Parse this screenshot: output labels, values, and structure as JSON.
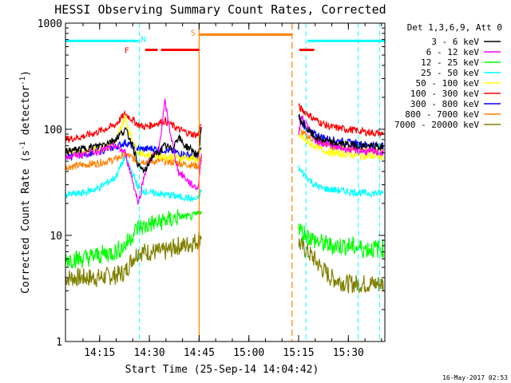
{
  "chart_data": {
    "type": "line",
    "title": "HESSI Observing Summary Count Rates, Corrected",
    "xlabel": "Start Time (25-Sep-14 14:04:42)",
    "ylabel_pre": "Corrected Count Rate (s",
    "ylabel_sup": "-1",
    "ylabel_post": " detector",
    "ylabel_sup2": "-1",
    "ylabel_end": ")",
    "footer": "16-May-2017 02:53",
    "y_scale": "log",
    "ylim": [
      1,
      1000
    ],
    "xlim": [
      "14:04:42",
      "15:41:00"
    ],
    "x_ticks": [
      "14:15",
      "14:30",
      "14:45",
      "15:00",
      "15:15",
      "15:30"
    ],
    "x_tick_minutes": [
      10.3,
      25.3,
      40.3,
      55.3,
      70.3,
      85.3
    ],
    "x_range_minutes": [
      0,
      96.3
    ],
    "y_ticks": [
      "1",
      "10",
      "100",
      "1000"
    ],
    "legend_header": "Det 1,3,6,9, Att 0",
    "legend_placement": "right",
    "series": [
      {
        "name": "3 - 6 keV",
        "color": "#000000",
        "x": [
          0,
          5,
          10,
          15,
          18,
          20,
          22,
          24,
          26,
          28,
          30,
          32,
          34,
          36,
          38,
          40,
          41.5,
          70,
          71,
          73,
          75,
          77,
          80,
          85,
          90,
          96
        ],
        "y": [
          62,
          65,
          70,
          80,
          100,
          75,
          45,
          40,
          55,
          60,
          70,
          65,
          85,
          70,
          65,
          55,
          150,
          140,
          120,
          100,
          85,
          80,
          75,
          72,
          70,
          68
        ]
      },
      {
        "name": "6 - 12 keV",
        "color": "#ff00ff",
        "x": [
          0,
          5,
          10,
          15,
          18,
          20,
          22,
          24,
          26,
          28,
          30,
          32,
          34,
          36,
          38,
          40,
          41.5,
          70,
          71,
          73,
          75,
          77,
          80,
          85,
          90,
          96
        ],
        "y": [
          55,
          58,
          62,
          70,
          60,
          35,
          20,
          40,
          55,
          60,
          180,
          80,
          40,
          35,
          30,
          28,
          80,
          80,
          130,
          110,
          80,
          75,
          70,
          65,
          62,
          60
        ]
      },
      {
        "name": "12 - 25 keV",
        "color": "#00ff00",
        "x": [
          0,
          5,
          10,
          15,
          18,
          20,
          22,
          24,
          26,
          28,
          30,
          32,
          34,
          36,
          38,
          40,
          41.5,
          70,
          71,
          73,
          75,
          77,
          80,
          85,
          90,
          96
        ],
        "y": [
          6,
          6,
          6.5,
          7,
          8,
          10,
          12,
          12,
          13,
          13,
          14,
          14,
          15,
          15,
          15,
          16,
          18,
          12,
          11,
          10,
          9,
          8.5,
          8,
          8,
          7.5,
          7.5
        ]
      },
      {
        "name": "25 - 50 keV",
        "color": "#00ffff",
        "x": [
          0,
          5,
          10,
          15,
          18,
          20,
          22,
          24,
          26,
          28,
          30,
          32,
          34,
          36,
          38,
          40,
          41.5,
          70,
          71,
          73,
          75,
          77,
          80,
          85,
          90,
          96
        ],
        "y": [
          24,
          25,
          28,
          35,
          55,
          40,
          28,
          26,
          25,
          25,
          24,
          24,
          23,
          23,
          22,
          22,
          30,
          45,
          40,
          35,
          30,
          28,
          27,
          26,
          25,
          25
        ]
      },
      {
        "name": "50 - 100 keV",
        "color": "#ffff00",
        "x": [
          0,
          5,
          10,
          15,
          18,
          20,
          22,
          24,
          26,
          28,
          30,
          32,
          34,
          36,
          38,
          40,
          41.5,
          70,
          71,
          73,
          75,
          77,
          80,
          85,
          90,
          96
        ],
        "y": [
          60,
          62,
          65,
          75,
          130,
          80,
          60,
          58,
          57,
          56,
          55,
          55,
          54,
          54,
          53,
          52,
          70,
          90,
          85,
          75,
          70,
          65,
          60,
          58,
          56,
          55
        ]
      },
      {
        "name": "100 - 300 keV",
        "color": "#ff0000",
        "x": [
          0,
          5,
          10,
          15,
          18,
          20,
          22,
          24,
          26,
          28,
          30,
          32,
          34,
          36,
          38,
          40,
          41.5,
          70,
          71,
          73,
          75,
          77,
          80,
          85,
          90,
          96
        ],
        "y": [
          80,
          85,
          95,
          110,
          140,
          125,
          110,
          105,
          110,
          115,
          120,
          110,
          100,
          95,
          90,
          88,
          130,
          165,
          155,
          140,
          125,
          115,
          105,
          100,
          95,
          90
        ]
      },
      {
        "name": "300 - 800 keV",
        "color": "#0000ff",
        "x": [
          0,
          5,
          10,
          15,
          18,
          20,
          22,
          24,
          26,
          28,
          30,
          32,
          34,
          36,
          38,
          40,
          41.5,
          70,
          71,
          73,
          75,
          77,
          80,
          85,
          90,
          96
        ],
        "y": [
          55,
          58,
          62,
          68,
          75,
          70,
          65,
          65,
          66,
          65,
          64,
          62,
          60,
          58,
          56,
          55,
          75,
          125,
          115,
          100,
          90,
          85,
          80,
          75,
          72,
          70
        ]
      },
      {
        "name": "800 - 7000 keV",
        "color": "#ff8000",
        "x": [
          0,
          5,
          10,
          15,
          18,
          20,
          22,
          24,
          26,
          28,
          30,
          32,
          34,
          36,
          38,
          40,
          41.5,
          70,
          71,
          73,
          75,
          77,
          80,
          85,
          90,
          96
        ],
        "y": [
          44,
          46,
          48,
          52,
          58,
          54,
          50,
          50,
          50,
          50,
          50,
          49,
          48,
          47,
          46,
          45,
          60,
          100,
          95,
          85,
          80,
          75,
          70,
          66,
          64,
          63
        ]
      },
      {
        "name": "7000 - 20000 keV",
        "color": "#808000",
        "x": [
          0,
          5,
          10,
          15,
          18,
          20,
          22,
          24,
          26,
          28,
          30,
          32,
          34,
          36,
          38,
          40,
          41.5,
          70,
          71,
          73,
          75,
          77,
          80,
          85,
          90,
          96
        ],
        "y": [
          4,
          4,
          4,
          4.2,
          4.5,
          6,
          7,
          7,
          7,
          7,
          7,
          7.5,
          8,
          8,
          8.5,
          9,
          11,
          9,
          8,
          7,
          6,
          5,
          4,
          3.5,
          3.5,
          3.5
        ]
      }
    ],
    "annotations": {
      "N": {
        "label": "N",
        "color": "#00ffff"
      },
      "F": {
        "label": "F",
        "color": "#ff0000"
      },
      "S": {
        "label": "S",
        "color": "#ff8000"
      }
    },
    "markers": {
      "saa_color": "#ff8000",
      "night_color": "#00ffff",
      "flare_color": "#ff0000"
    }
  }
}
